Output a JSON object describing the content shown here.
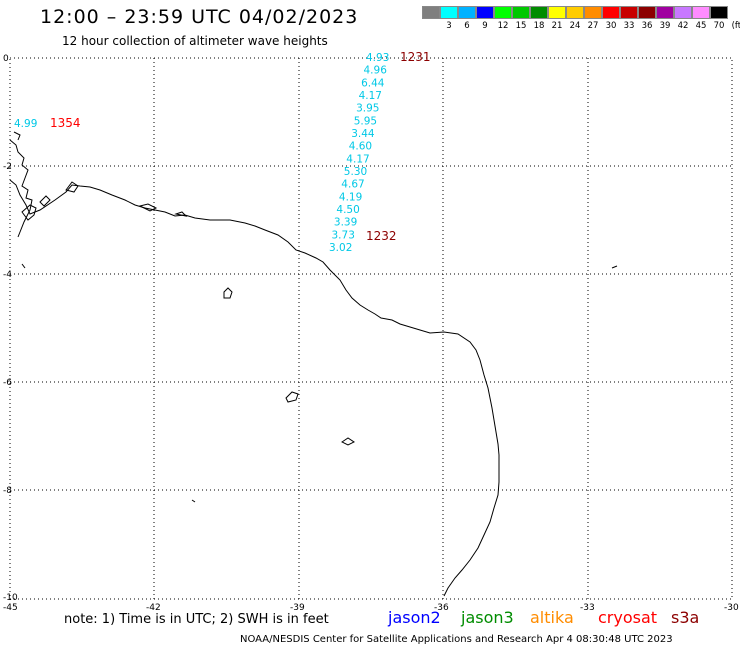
{
  "header": {
    "title": "12:00 – 23:59 UTC 04/02/2023",
    "subtitle": "12 hour collection of altimeter wave heights"
  },
  "legend": {
    "unit": "(ft)",
    "items": [
      {
        "label": "",
        "color": "#7f7f7f"
      },
      {
        "label": "3",
        "color": "#00ffff"
      },
      {
        "label": "6",
        "color": "#00b2ff"
      },
      {
        "label": "9",
        "color": "#0000ff"
      },
      {
        "label": "12",
        "color": "#00ff00"
      },
      {
        "label": "15",
        "color": "#00c800"
      },
      {
        "label": "18",
        "color": "#008c00"
      },
      {
        "label": "21",
        "color": "#ffff00"
      },
      {
        "label": "24",
        "color": "#ffcc00"
      },
      {
        "label": "27",
        "color": "#ff8c00"
      },
      {
        "label": "30",
        "color": "#ff0000"
      },
      {
        "label": "33",
        "color": "#c80000"
      },
      {
        "label": "36",
        "color": "#8c0000"
      },
      {
        "label": "39",
        "color": "#a000a0"
      },
      {
        "label": "42",
        "color": "#c878ff"
      },
      {
        "label": "45",
        "color": "#ff8cff"
      },
      {
        "label": "70",
        "color": "#000000"
      }
    ]
  },
  "axes": {
    "lat_labels": [
      "0",
      "-2",
      "-4",
      "-6",
      "-8",
      "-8",
      "-10"
    ],
    "lon_labels": [
      "-45",
      "-42",
      "-39",
      "-36",
      "-33",
      "-30"
    ]
  },
  "observations": {
    "track_values": [
      "4.93",
      "4.96",
      "6.44",
      "4.17",
      "3.95",
      "5.95",
      "3.44",
      "4.60",
      "4.17",
      "5.30",
      "4.67",
      "4.19",
      "4.50",
      "3.39",
      "3.73",
      "3.02"
    ],
    "track_color": "#00c8e6",
    "time_1231": "1231",
    "time_1232": "1232",
    "left_value": "4.99",
    "time_1354": "1354",
    "time_color_dark": "#8c0000",
    "time_color_red": "#ff0000"
  },
  "note": "note:  1) Time is in UTC; 2) SWH is in feet",
  "satellites": [
    {
      "name": "jason2",
      "color": "#0000ff"
    },
    {
      "name": "jason3",
      "color": "#008c00"
    },
    {
      "name": "altika",
      "color": "#ff8c00"
    },
    {
      "name": "cryosat",
      "color": "#ff0000"
    },
    {
      "name": "s3a",
      "color": "#8c0000"
    }
  ],
  "footer": "NOAA/NESDIS Center for Satellite Applications and Research     Apr  4 08:30:48 UTC 2023"
}
